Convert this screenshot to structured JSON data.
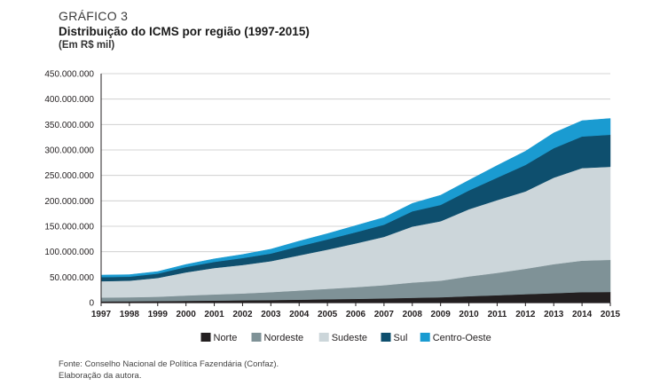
{
  "header": {
    "kicker": "GRÁFICO 3",
    "title": "Distribuição do ICMS por região (1997-2015)",
    "unit": "(Em R$ mil)"
  },
  "source": {
    "line1": "Fonte: Conselho Nacional de Política Fazendária (Confaz).",
    "line2": "Elaboração da autora."
  },
  "chart_data": {
    "type": "area",
    "stacked": true,
    "x": [
      "1997",
      "1998",
      "1999",
      "2000",
      "2001",
      "2002",
      "2003",
      "2004",
      "2005",
      "2006",
      "2007",
      "2008",
      "2009",
      "2010",
      "2011",
      "2012",
      "2013",
      "2014",
      "2015"
    ],
    "ylim": [
      0,
      450000000
    ],
    "yticks": [
      0,
      50000000,
      100000000,
      150000000,
      200000000,
      250000000,
      300000000,
      350000000,
      400000000,
      450000000
    ],
    "ytick_labels": [
      "0",
      "50.000.000",
      "100.000.000",
      "150.000.000",
      "200.000.000",
      "250.000.000",
      "300.000.000",
      "350.000.000",
      "400.000.000",
      "450.000.000"
    ],
    "grid": true,
    "legend_position": "bottom",
    "series": [
      {
        "name": "Norte",
        "color": "#231f20",
        "values": [
          2500000,
          2700000,
          2900000,
          3500000,
          4000000,
          4500000,
          5000000,
          5800000,
          6600000,
          7400000,
          8200000,
          9500000,
          10500000,
          12500000,
          14500000,
          16500000,
          18500000,
          20500000,
          21000000
        ]
      },
      {
        "name": "Nordeste",
        "color": "#7f9297",
        "values": [
          7500000,
          7800000,
          8600000,
          10500000,
          12000000,
          13500000,
          15500000,
          18000000,
          20500000,
          23000000,
          26000000,
          30000000,
          32500000,
          39000000,
          44000000,
          50000000,
          57000000,
          62000000,
          63000000
        ]
      },
      {
        "name": "Sudeste",
        "color": "#ccd6da",
        "values": [
          32000000,
          32500000,
          37000000,
          45500000,
          52000000,
          56000000,
          61000000,
          69000000,
          77000000,
          86000000,
          95000000,
          110000000,
          117000000,
          132000000,
          143000000,
          152000000,
          170000000,
          182000000,
          183000000
        ]
      },
      {
        "name": "Sul",
        "color": "#0e4f6e",
        "values": [
          8000000,
          8000000,
          8500000,
          10500000,
          12000000,
          13500000,
          15000000,
          18000000,
          20000000,
          22000000,
          24000000,
          30000000,
          32000000,
          37000000,
          44000000,
          52000000,
          58000000,
          62000000,
          63000000
        ]
      },
      {
        "name": "Centro-Oeste",
        "color": "#1a9bd1",
        "values": [
          4000000,
          4000000,
          4000000,
          5000000,
          6000000,
          7000000,
          8500000,
          10000000,
          11500000,
          13000000,
          14000000,
          15500000,
          19000000,
          20000000,
          24000000,
          27000000,
          30000000,
          31000000,
          32000000
        ]
      }
    ]
  }
}
